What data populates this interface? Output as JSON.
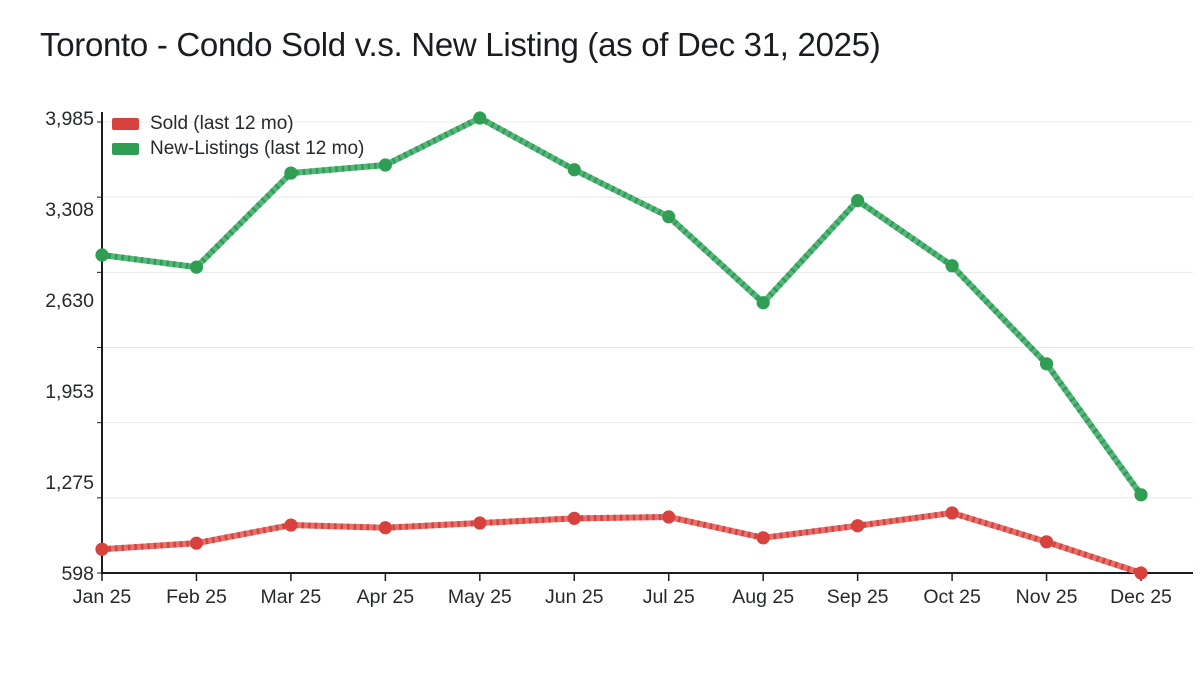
{
  "title": "Toronto - Condo Sold v.s. New Listing (as of Dec 31, 2025)",
  "chart_data": {
    "type": "line",
    "title": "Toronto - Condo Sold v.s. New Listing (as of Dec 31, 2025)",
    "categories": [
      "Jan 25",
      "Feb 25",
      "Mar 25",
      "Apr 25",
      "May 25",
      "Jun 25",
      "Jul 25",
      "Aug 25",
      "Sep 25",
      "Oct 25",
      "Nov 25",
      "Dec 25"
    ],
    "series": [
      {
        "name": "Sold (last 12 mo)",
        "color": "#d7423e",
        "color_light": "#e4716c",
        "values": [
          775,
          820,
          955,
          935,
          970,
          1005,
          1015,
          860,
          950,
          1045,
          830,
          598
        ]
      },
      {
        "name": "New-Listings (last 12 mo)",
        "color": "#2f9e53",
        "color_light": "#57b67d",
        "values": [
          2965,
          2875,
          3575,
          3635,
          3985,
          3600,
          3250,
          2610,
          3370,
          2885,
          2155,
          1180
        ]
      }
    ],
    "ylim": [
      598,
      3985
    ],
    "ytick_values": [
      3985,
      3308,
      2630,
      1953,
      1275,
      598
    ],
    "ytick_labels": [
      "3,985",
      "3,308",
      "2,630",
      "1,953",
      "1,275",
      "598"
    ],
    "xlabel": "",
    "ylabel": "",
    "grid": true,
    "legend_position": "top-left",
    "axis_color": "#1a1d21",
    "grid_color": "#e8e8e8",
    "text_color": "#26292c"
  }
}
